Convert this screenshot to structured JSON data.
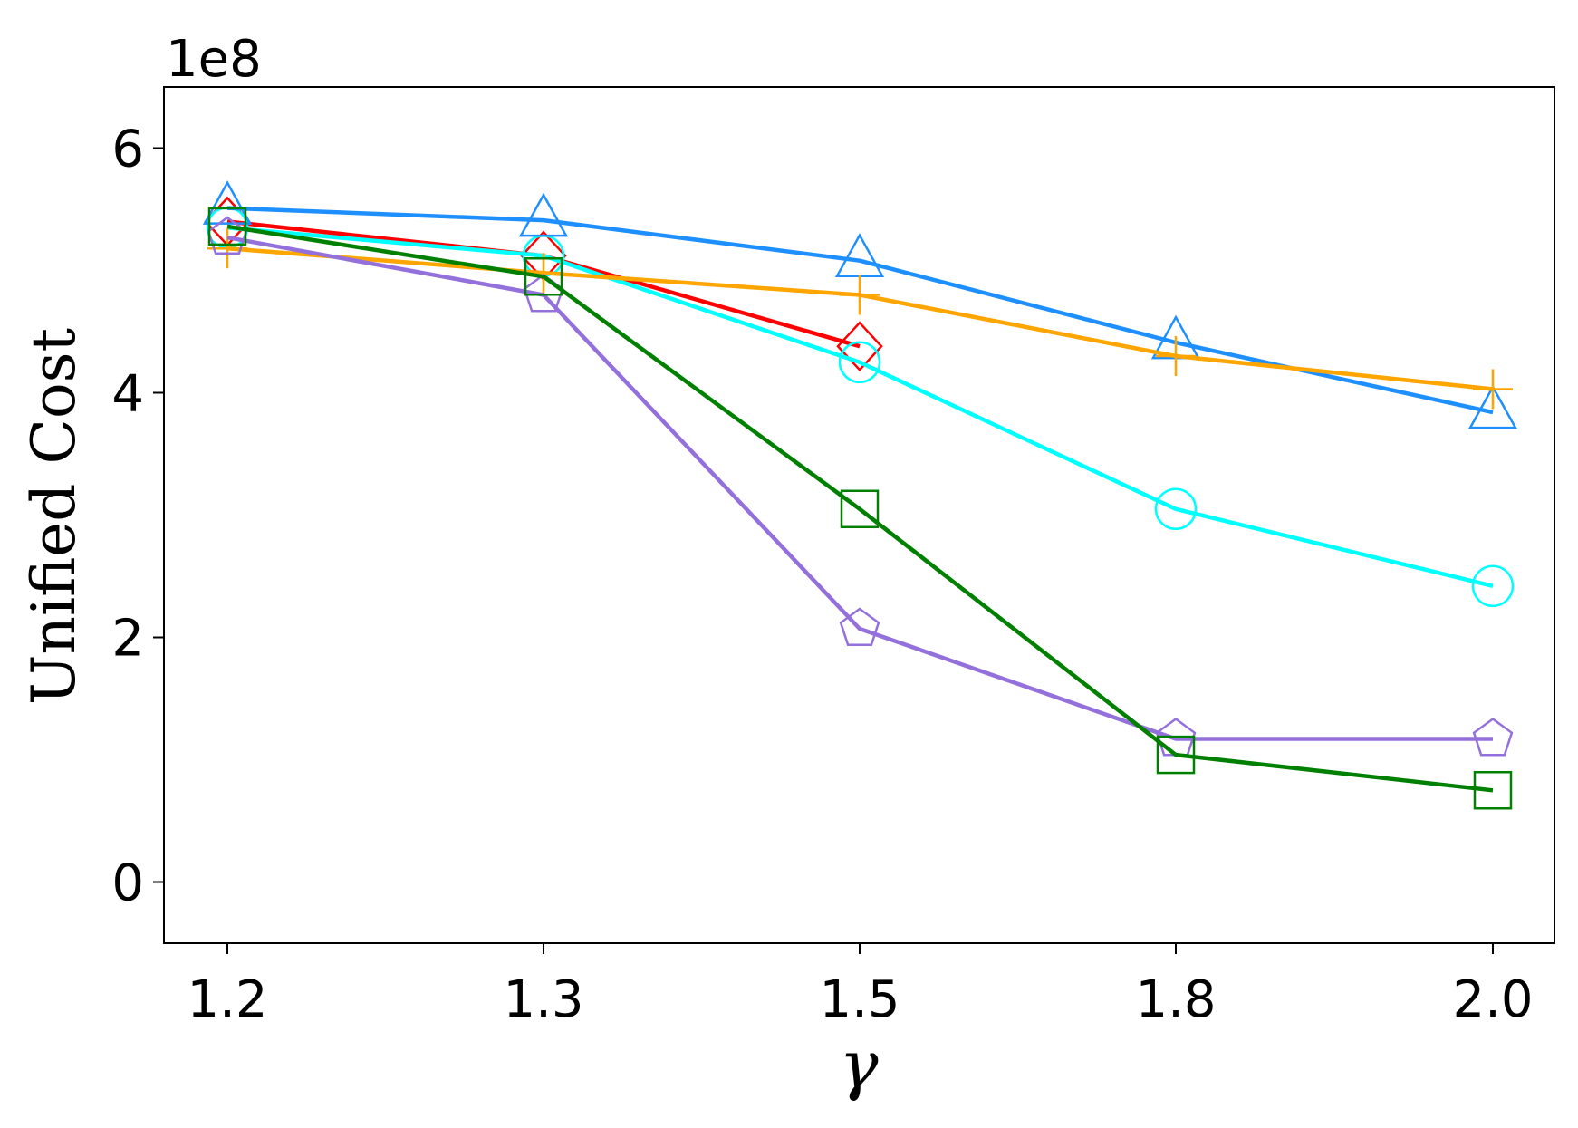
{
  "chart_data": {
    "type": "line",
    "title": "",
    "xlabel": "γ",
    "ylabel": "Unified Cost",
    "y_multiplier": "1e8",
    "categories": [
      "1.2",
      "1.3",
      "1.5",
      "1.8",
      "2.0"
    ],
    "ylim": [
      -0.5,
      6.5
    ],
    "yticks": [
      0,
      2,
      4,
      6
    ],
    "grid": false,
    "legend": "none",
    "series": [
      {
        "color": "#ff0000",
        "marker": "diamond",
        "values": [
          5.4,
          5.12,
          4.38,
          null,
          null
        ]
      },
      {
        "color": "#00ffff",
        "marker": "circle",
        "values": [
          5.35,
          5.12,
          4.25,
          3.05,
          2.42
        ]
      },
      {
        "color": "#1e8ffe",
        "marker": "triangle",
        "values": [
          5.51,
          5.41,
          5.08,
          4.41,
          3.84
        ]
      },
      {
        "color": "#ffa500",
        "marker": "plus",
        "values": [
          5.18,
          4.98,
          4.8,
          4.3,
          4.03
        ]
      },
      {
        "color": "#9370db",
        "marker": "pentagon",
        "values": [
          5.27,
          4.8,
          2.07,
          1.17,
          1.17
        ]
      },
      {
        "color": "#008000",
        "marker": "square",
        "values": [
          5.36,
          4.95,
          3.05,
          1.04,
          0.75
        ]
      }
    ]
  }
}
